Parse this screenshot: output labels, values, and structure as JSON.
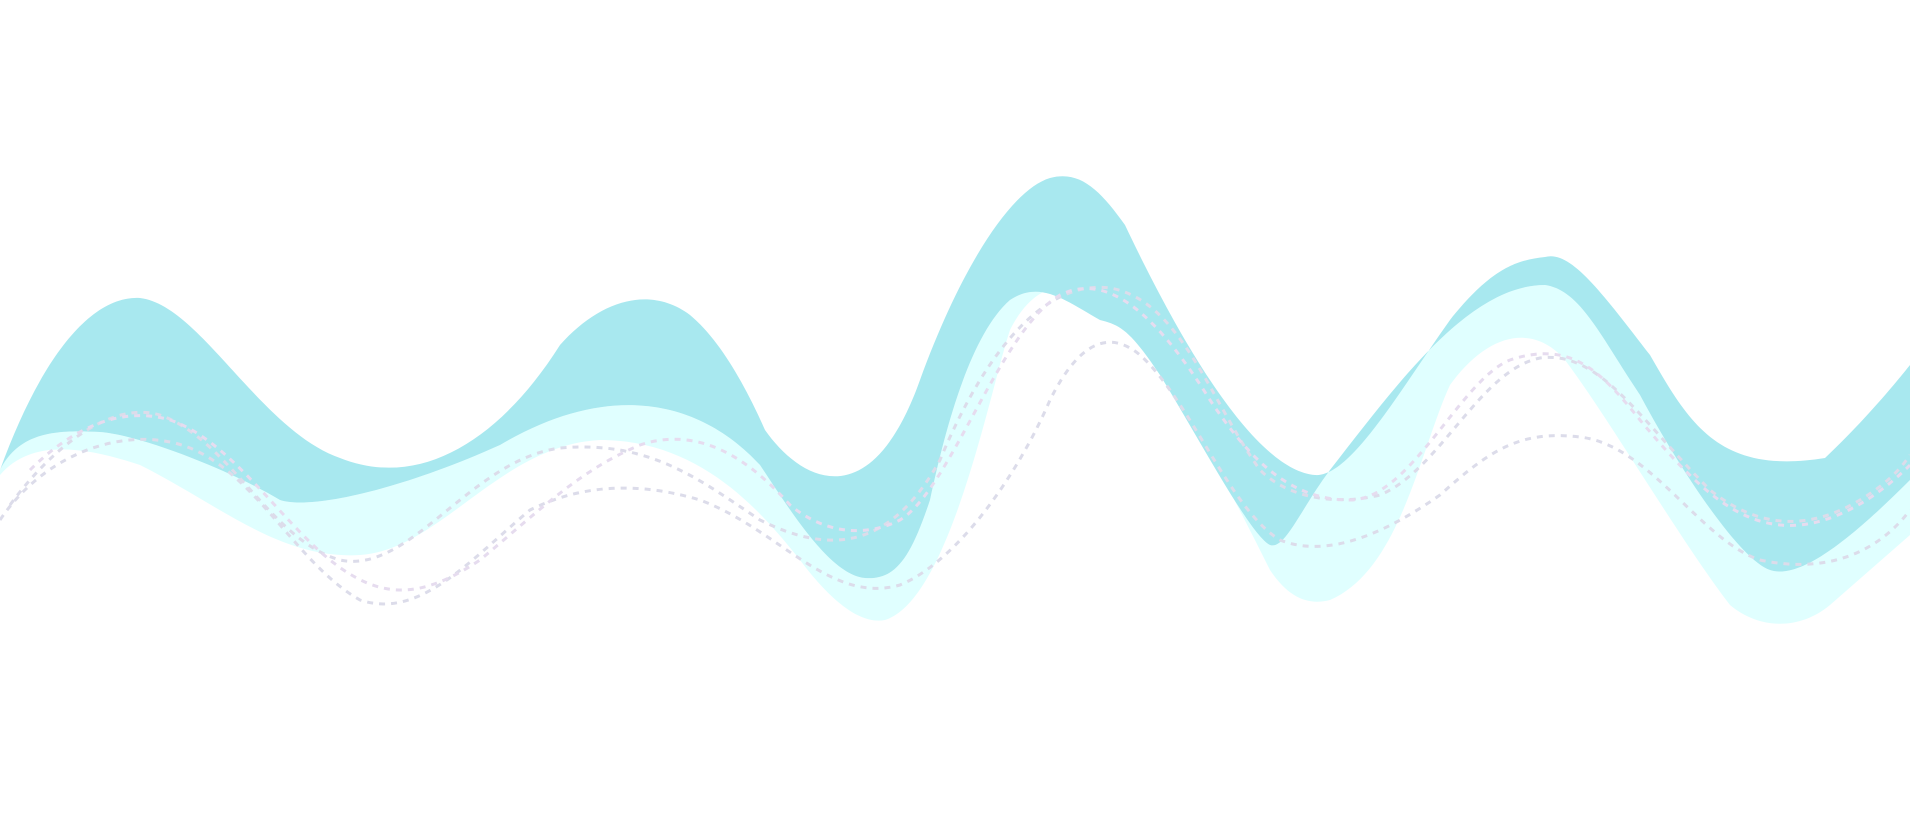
{
  "background": {
    "color": "#ffffff"
  },
  "palette": {
    "wave_light": "#e0ffff",
    "wave_dark": "#a8e8ef",
    "dashed_line": "#dcdcea"
  },
  "elements": {
    "waves": [
      "light-wave-band",
      "dark-wave-band"
    ],
    "dashed_curves": [
      "dashed-curve-upper",
      "dashed-curve-middle",
      "dashed-curve-lower"
    ]
  }
}
